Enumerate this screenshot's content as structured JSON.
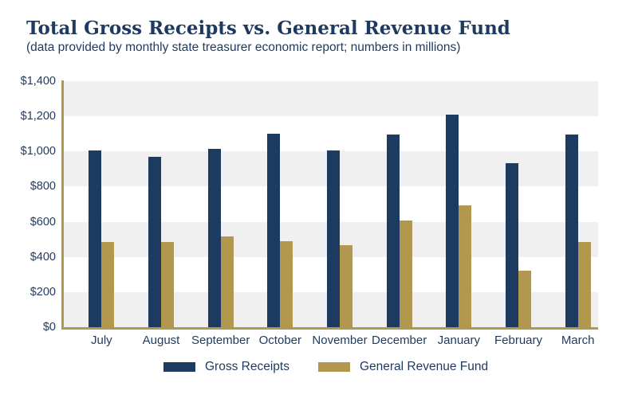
{
  "page": {
    "title": "Total Gross Receipts vs. General Revenue Fund",
    "subtitle": "(data provided by monthly state treasurer economic report; numbers in millions)"
  },
  "colors": {
    "navy": "#1d3a60",
    "gold": "#b2974e",
    "band_gray": "#f0f0f0",
    "text": "#1e3a5f",
    "background": "#ffffff"
  },
  "chart_data": {
    "type": "bar",
    "title": "Total Gross Receipts vs. General Revenue Fund",
    "subtitle": "(data provided by monthly state treasurer economic report; numbers in millions)",
    "categories": [
      "July",
      "August",
      "September",
      "October",
      "November",
      "December",
      "January",
      "February",
      "March"
    ],
    "series": [
      {
        "name": "Gross Receipts",
        "color": "#1d3a60",
        "values": [
          1005,
          970,
          1015,
          1100,
          1005,
          1095,
          1210,
          935,
          1095
        ]
      },
      {
        "name": "General Revenue Fund",
        "color": "#b2974e",
        "values": [
          485,
          485,
          515,
          490,
          465,
          605,
          695,
          320,
          485
        ]
      }
    ],
    "xlabel": "",
    "ylabel": "",
    "ylim": [
      0,
      1400
    ],
    "ytick_step": 200,
    "ytick_labels": [
      "$0",
      "$200",
      "$400",
      "$600",
      "$800",
      "$1,000",
      "$1,200",
      "$1,400"
    ],
    "grid": "alternating horizontal gray bands per 200 units",
    "legend_position": "bottom"
  },
  "legend": {
    "items": [
      {
        "label": "Gross Receipts",
        "color": "#1d3a60"
      },
      {
        "label": "General Revenue Fund",
        "color": "#b2974e"
      }
    ]
  }
}
